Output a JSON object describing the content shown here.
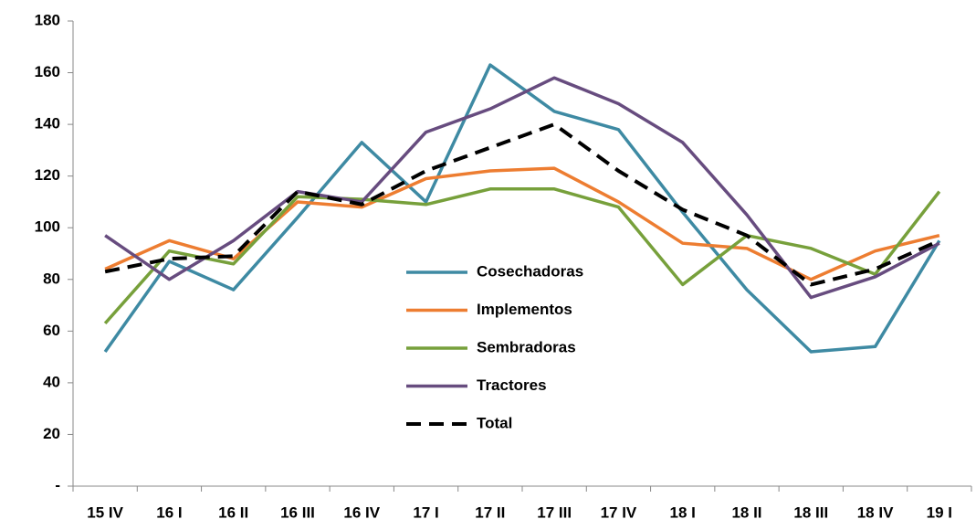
{
  "chart_data": {
    "type": "line",
    "categories": [
      "15 IV",
      "16 I",
      "16 II",
      "16 III",
      "16 IV",
      "17 I",
      "17 II",
      "17 III",
      "17 IV",
      "18 I",
      "18 II",
      "18 III",
      "18 IV",
      "19 I"
    ],
    "series": [
      {
        "name": "Cosechadoras",
        "color": "#3e8aa3",
        "values": [
          52,
          87,
          76,
          104,
          133,
          110,
          163,
          145,
          138,
          106,
          76,
          52,
          54,
          95
        ]
      },
      {
        "name": "Implementos",
        "color": "#ed7d31",
        "values": [
          84,
          95,
          88,
          110,
          108,
          119,
          122,
          123,
          110,
          94,
          92,
          80,
          91,
          97
        ]
      },
      {
        "name": "Sembradoras",
        "color": "#77a03b",
        "values": [
          63,
          91,
          86,
          112,
          111,
          109,
          115,
          115,
          108,
          78,
          97,
          92,
          82,
          114
        ]
      },
      {
        "name": "Tractores",
        "color": "#674c7f",
        "values": [
          97,
          80,
          95,
          114,
          110,
          137,
          146,
          158,
          148,
          133,
          105,
          73,
          81,
          94
        ]
      },
      {
        "name": "Total",
        "color": "#000000",
        "dashed": true,
        "values": [
          83,
          88,
          89,
          114,
          109,
          122,
          131,
          140,
          122,
          107,
          97,
          78,
          84,
          95
        ]
      }
    ],
    "ylim": [
      0,
      180
    ],
    "yticks": [
      {
        "value": 0,
        "label": "-"
      },
      20,
      40,
      60,
      80,
      100,
      120,
      140,
      160,
      180
    ],
    "grid": false
  }
}
